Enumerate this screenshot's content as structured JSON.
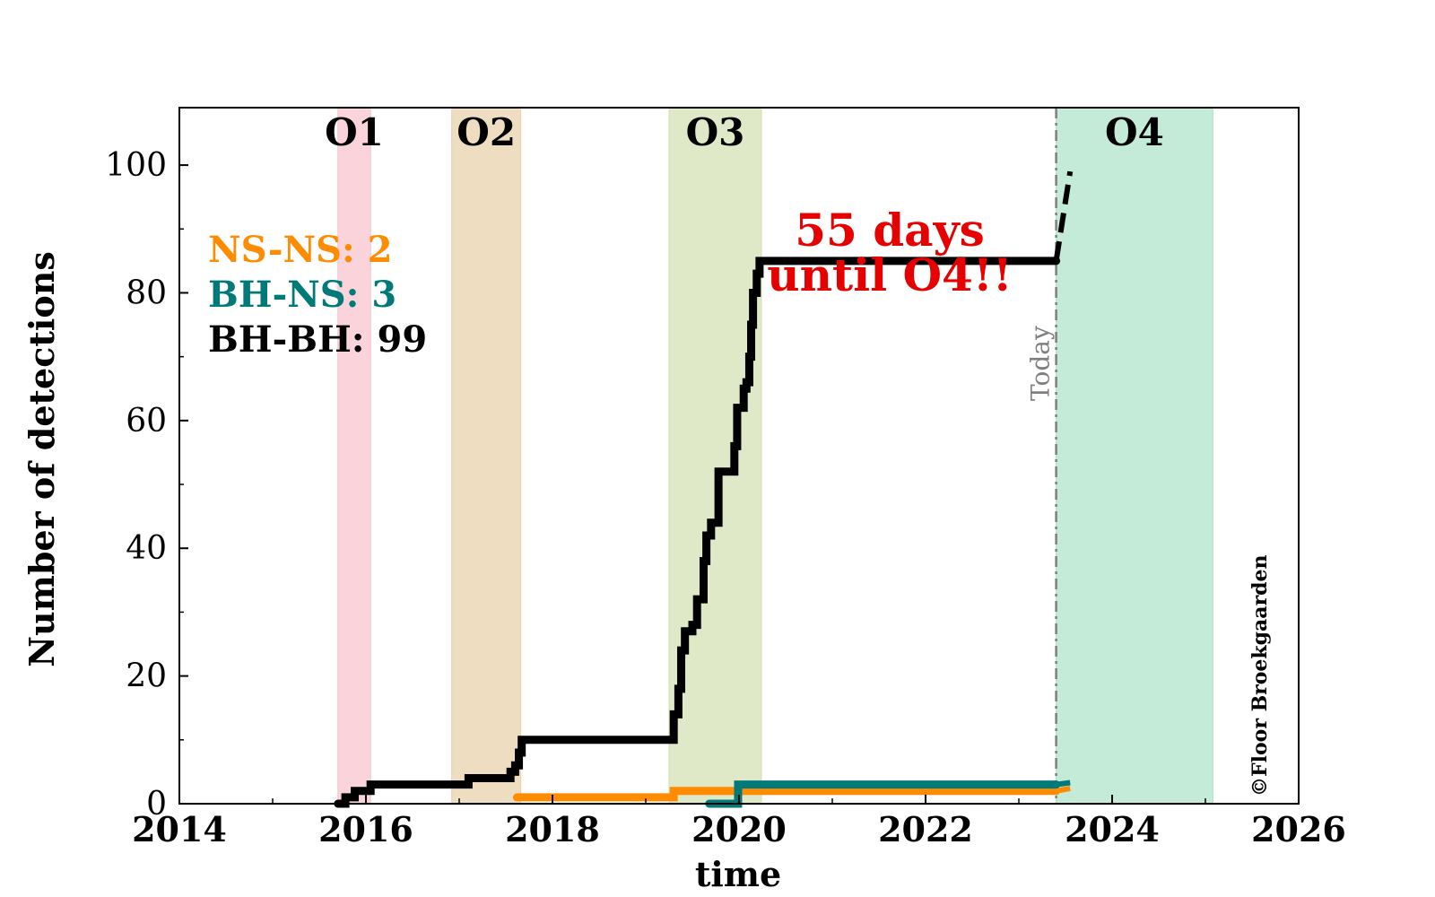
{
  "chart_data": {
    "type": "line",
    "title": "",
    "xlabel": "time",
    "ylabel": "Number of detections",
    "xlim": [
      2014,
      2026
    ],
    "ylim": [
      0,
      109
    ],
    "x_ticks": [
      2014,
      2016,
      2018,
      2020,
      2022,
      2024,
      2026
    ],
    "y_ticks": [
      0,
      20,
      40,
      60,
      80,
      100
    ],
    "grid": false,
    "observing_runs": [
      {
        "name": "O1",
        "start": 2015.7,
        "end": 2016.05,
        "color": "#f9c0cc"
      },
      {
        "name": "O2",
        "start": 2016.92,
        "end": 2017.66,
        "color": "#e8cfa8"
      },
      {
        "name": "O3",
        "start": 2019.25,
        "end": 2020.24,
        "color": "#d2dfb0"
      },
      {
        "name": "O4",
        "start": 2023.4,
        "end": 2025.08,
        "color": "#a9e2c8"
      }
    ],
    "series": [
      {
        "name": "BH-BH",
        "color": "#000000",
        "x": [
          2015.7,
          2015.78,
          2015.88,
          2015.97,
          2016.05,
          2016.98,
          2017.1,
          2017.25,
          2017.4,
          2017.55,
          2017.6,
          2017.64,
          2017.67,
          2019.25,
          2019.3,
          2019.35,
          2019.38,
          2019.42,
          2019.5,
          2019.55,
          2019.62,
          2019.65,
          2019.7,
          2019.78,
          2019.85,
          2019.95,
          2019.98,
          2020.05,
          2020.08,
          2020.11,
          2020.13,
          2020.15,
          2020.19,
          2020.22,
          2023.4
        ],
        "y": [
          0,
          1,
          2,
          2,
          3,
          3,
          4,
          4,
          4,
          5,
          6,
          8,
          10,
          10,
          14,
          18,
          24,
          27,
          28,
          32,
          38,
          42,
          44,
          52,
          52,
          56,
          62,
          65,
          66,
          70,
          75,
          80,
          83,
          85,
          85
        ],
        "projection": {
          "x": [
            2023.4,
            2023.55
          ],
          "y": [
            85,
            99
          ]
        }
      },
      {
        "name": "NS-NS",
        "color": "#ff8c00",
        "x": [
          2017.62,
          2019.3,
          2023.4
        ],
        "y": [
          1,
          2,
          2
        ],
        "projection": {
          "x": [
            2023.4,
            2023.55
          ],
          "y": [
            2,
            2.4
          ]
        }
      },
      {
        "name": "BH-NS",
        "color": "#007a78",
        "x": [
          2019.68,
          2019.98,
          2019.99,
          2023.4
        ],
        "y": [
          0,
          0,
          3,
          3
        ],
        "projection": {
          "x": [
            2023.4,
            2023.55
          ],
          "y": [
            3,
            3.3
          ]
        }
      }
    ],
    "today": {
      "x": 2023.4,
      "label": "Today",
      "color": "#7f7f7f"
    },
    "annotation": {
      "line1": "55 days",
      "line2": "until O4!!",
      "color": "#e60000"
    },
    "legend": {
      "placement": "upper-left",
      "entries": [
        {
          "text": "NS-NS: 2",
          "color": "#ff8c00"
        },
        {
          "text": "BH-NS: 3",
          "color": "#007a78"
        },
        {
          "text": "BH-BH: 99",
          "color": "#000000"
        }
      ]
    },
    "credit": "©Floor Broekgaarden"
  }
}
